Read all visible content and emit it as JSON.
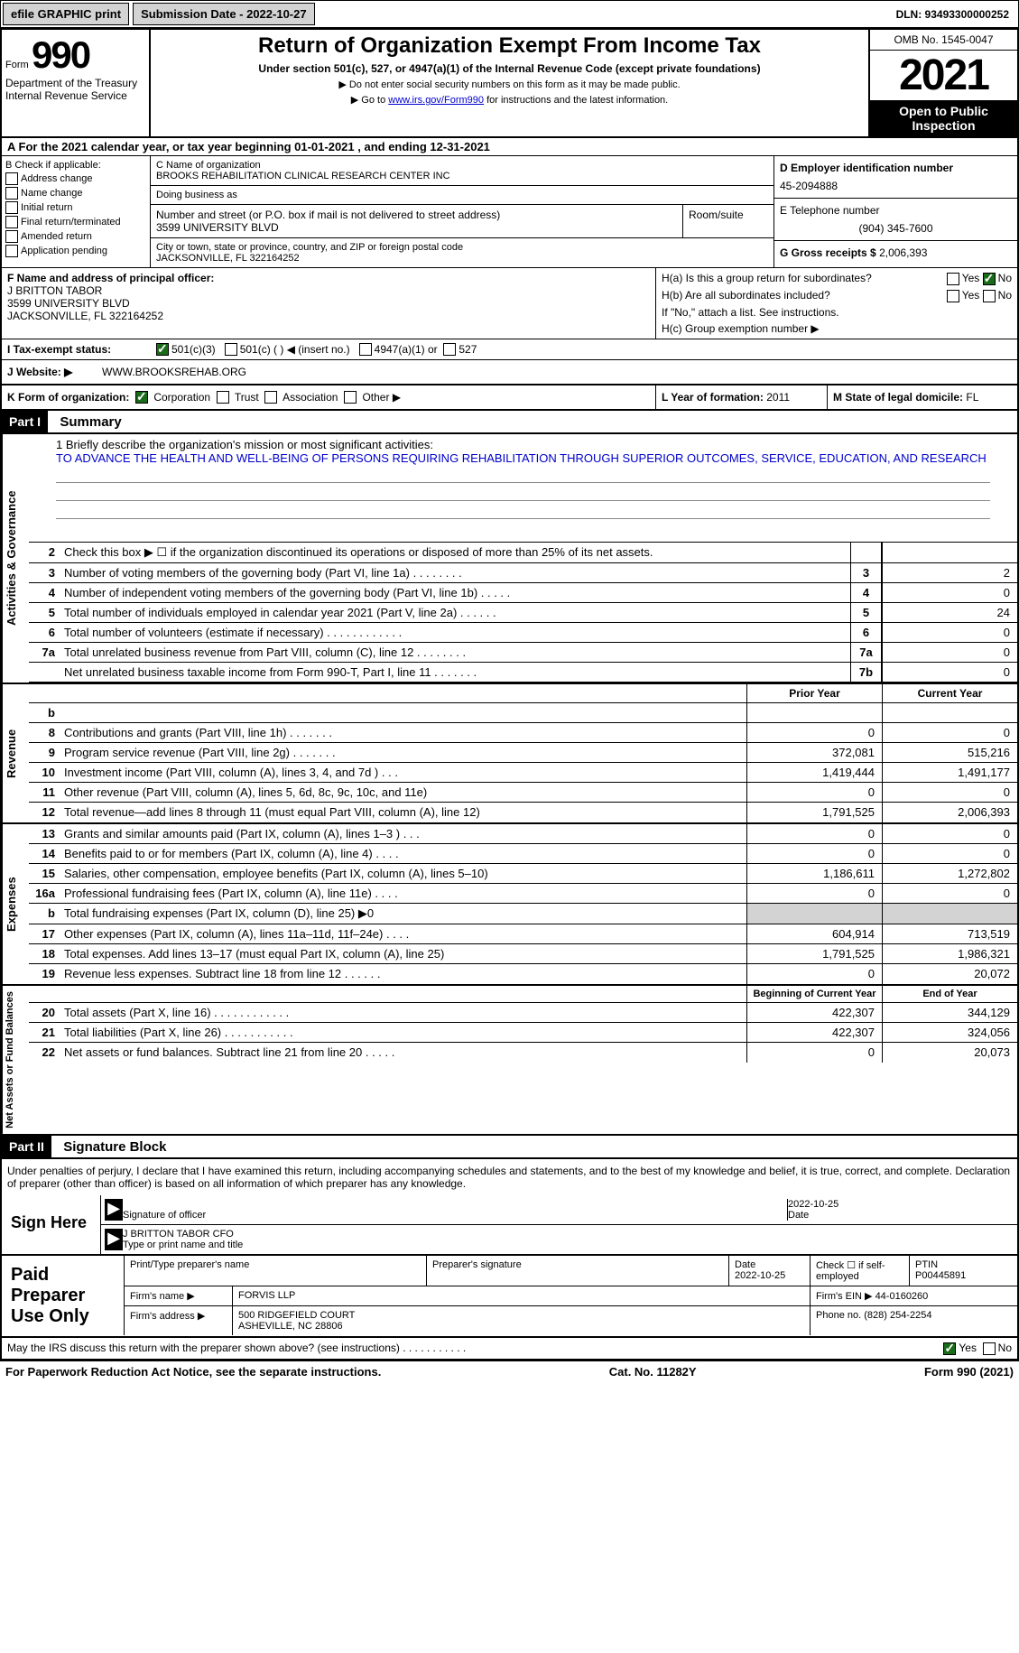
{
  "topbar": {
    "efile": "efile GRAPHIC print",
    "submission": "Submission Date - 2022-10-27",
    "dln": "DLN: 93493300000252"
  },
  "header": {
    "form_word": "Form",
    "form_num": "990",
    "dept": "Department of the Treasury Internal Revenue Service",
    "title": "Return of Organization Exempt From Income Tax",
    "subtitle": "Under section 501(c), 527, or 4947(a)(1) of the Internal Revenue Code (except private foundations)",
    "note1": "▶ Do not enter social security numbers on this form as it may be made public.",
    "note2_pre": "▶ Go to ",
    "note2_link": "www.irs.gov/Form990",
    "note2_post": " for instructions and the latest information.",
    "omb": "OMB No. 1545-0047",
    "year": "2021",
    "open": "Open to Public Inspection"
  },
  "rowA": "A For the 2021 calendar year, or tax year beginning 01-01-2021    , and ending 12-31-2021",
  "boxB": {
    "title": "B Check if applicable:",
    "items": [
      "Address change",
      "Name change",
      "Initial return",
      "Final return/terminated",
      "Amended return",
      "Application pending"
    ]
  },
  "boxC": {
    "name_label": "C Name of organization",
    "name": "BROOKS REHABILITATION CLINICAL RESEARCH CENTER INC",
    "dba_label": "Doing business as",
    "addr_label": "Number and street (or P.O. box if mail is not delivered to street address)",
    "room_label": "Room/suite",
    "addr": "3599 UNIVERSITY BLVD",
    "city_label": "City or town, state or province, country, and ZIP or foreign postal code",
    "city": "JACKSONVILLE, FL  322164252"
  },
  "boxD": {
    "label": "D Employer identification number",
    "value": "45-2094888"
  },
  "boxE": {
    "label": "E Telephone number",
    "value": "(904) 345-7600"
  },
  "boxG": {
    "label": "G Gross receipts $ ",
    "value": "2,006,393"
  },
  "boxF": {
    "label": "F Name and address of principal officer:",
    "name": "J BRITTON TABOR",
    "addr1": "3599 UNIVERSITY BLVD",
    "addr2": "JACKSONVILLE, FL  322164252"
  },
  "boxH": {
    "a": "H(a) Is this a group return for subordinates?",
    "b": "H(b) Are all subordinates included?",
    "note": "If \"No,\" attach a list. See instructions.",
    "c": "H(c) Group exemption number ▶",
    "yes": "Yes",
    "no": "No"
  },
  "rowI": {
    "label": "I Tax-exempt status:",
    "o1": "501(c)(3)",
    "o2": "501(c) (  ) ◀ (insert no.)",
    "o3": "4947(a)(1) or",
    "o4": "527"
  },
  "rowJ": {
    "label": "J Website: ▶",
    "value": "WWW.BROOKSREHAB.ORG"
  },
  "rowK": {
    "label": "K Form of organization:",
    "o1": "Corporation",
    "o2": "Trust",
    "o3": "Association",
    "o4": "Other ▶"
  },
  "rowL": {
    "label": "L Year of formation: ",
    "value": "2011"
  },
  "rowM": {
    "label": "M State of legal domicile: ",
    "value": "FL"
  },
  "part1": {
    "tag": "Part I",
    "title": "Summary"
  },
  "mission": {
    "line1_label": "1  Briefly describe the organization's mission or most significant activities:",
    "text": "TO ADVANCE THE HEALTH AND WELL-BEING OF PERSONS REQUIRING REHABILITATION THROUGH SUPERIOR OUTCOMES, SERVICE, EDUCATION, AND RESEARCH"
  },
  "lines_gov": [
    {
      "n": "2",
      "t": "Check this box ▶ ☐ if the organization discontinued its operations or disposed of more than 25% of its net assets.",
      "box": "",
      "v": ""
    },
    {
      "n": "3",
      "t": "Number of voting members of the governing body (Part VI, line 1a)  .   .   .   .   .   .   .   .",
      "box": "3",
      "v": "2"
    },
    {
      "n": "4",
      "t": "Number of independent voting members of the governing body (Part VI, line 1b)  .   .   .   .   .",
      "box": "4",
      "v": "0"
    },
    {
      "n": "5",
      "t": "Total number of individuals employed in calendar year 2021 (Part V, line 2a)  .   .   .   .   .   .",
      "box": "5",
      "v": "24"
    },
    {
      "n": "6",
      "t": "Total number of volunteers (estimate if necessary)   .   .   .   .   .   .   .   .   .   .   .   .",
      "box": "6",
      "v": "0"
    },
    {
      "n": "7a",
      "t": "Total unrelated business revenue from Part VIII, column (C), line 12   .   .   .   .   .   .   .   .",
      "box": "7a",
      "v": "0"
    },
    {
      "n": "",
      "t": "Net unrelated business taxable income from Form 990-T, Part I, line 11  .   .   .   .   .   .   .",
      "box": "7b",
      "v": "0"
    }
  ],
  "col_hdrs": {
    "prior": "Prior Year",
    "current": "Current Year",
    "begin": "Beginning of Current Year",
    "end": "End of Year"
  },
  "lines_rev": [
    {
      "n": "b",
      "t": "",
      "p": "",
      "c": ""
    },
    {
      "n": "8",
      "t": "Contributions and grants (Part VIII, line 1h)   .   .   .   .   .   .   .",
      "p": "0",
      "c": "0"
    },
    {
      "n": "9",
      "t": "Program service revenue (Part VIII, line 2g)   .   .   .   .   .   .   .",
      "p": "372,081",
      "c": "515,216"
    },
    {
      "n": "10",
      "t": "Investment income (Part VIII, column (A), lines 3, 4, and 7d )   .   .   .",
      "p": "1,419,444",
      "c": "1,491,177"
    },
    {
      "n": "11",
      "t": "Other revenue (Part VIII, column (A), lines 5, 6d, 8c, 9c, 10c, and 11e)",
      "p": "0",
      "c": "0"
    },
    {
      "n": "12",
      "t": "Total revenue—add lines 8 through 11 (must equal Part VIII, column (A), line 12)",
      "p": "1,791,525",
      "c": "2,006,393"
    }
  ],
  "lines_exp": [
    {
      "n": "13",
      "t": "Grants and similar amounts paid (Part IX, column (A), lines 1–3 )   .   .   .",
      "p": "0",
      "c": "0"
    },
    {
      "n": "14",
      "t": "Benefits paid to or for members (Part IX, column (A), line 4)   .   .   .   .",
      "p": "0",
      "c": "0"
    },
    {
      "n": "15",
      "t": "Salaries, other compensation, employee benefits (Part IX, column (A), lines 5–10)",
      "p": "1,186,611",
      "c": "1,272,802"
    },
    {
      "n": "16a",
      "t": "Professional fundraising fees (Part IX, column (A), line 11e)   .   .   .   .",
      "p": "0",
      "c": "0"
    },
    {
      "n": "b",
      "t": "Total fundraising expenses (Part IX, column (D), line 25) ▶0",
      "p": "",
      "c": "",
      "shade": true
    },
    {
      "n": "17",
      "t": "Other expenses (Part IX, column (A), lines 11a–11d, 11f–24e)   .   .   .   .",
      "p": "604,914",
      "c": "713,519"
    },
    {
      "n": "18",
      "t": "Total expenses. Add lines 13–17 (must equal Part IX, column (A), line 25)",
      "p": "1,791,525",
      "c": "1,986,321"
    },
    {
      "n": "19",
      "t": "Revenue less expenses. Subtract line 18 from line 12  .   .   .   .   .   .",
      "p": "0",
      "c": "20,072"
    }
  ],
  "lines_net": [
    {
      "n": "20",
      "t": "Total assets (Part X, line 16)  .   .   .   .   .   .   .   .   .   .   .   .",
      "p": "422,307",
      "c": "344,129"
    },
    {
      "n": "21",
      "t": "Total liabilities (Part X, line 26)  .   .   .   .   .   .   .   .   .   .   .",
      "p": "422,307",
      "c": "324,056"
    },
    {
      "n": "22",
      "t": "Net assets or fund balances. Subtract line 21 from line 20  .   .   .   .   .",
      "p": "0",
      "c": "20,073"
    }
  ],
  "part2": {
    "tag": "Part II",
    "title": "Signature Block"
  },
  "sig": {
    "declaration": "Under penalties of perjury, I declare that I have examined this return, including accompanying schedules and statements, and to the best of my knowledge and belief, it is true, correct, and complete. Declaration of preparer (other than officer) is based on all information of which preparer has any knowledge.",
    "sign_here": "Sign Here",
    "sig_officer": "Signature of officer",
    "date": "Date",
    "sig_date": "2022-10-25",
    "name_title": "J BRITTON TABOR CFO",
    "type_label": "Type or print name and title"
  },
  "paid": {
    "title": "Paid Preparer Use Only",
    "print_label": "Print/Type preparer's name",
    "sig_label": "Preparer's signature",
    "date_label": "Date",
    "date_val": "2022-10-25",
    "check_label": "Check ☐ if self-employed",
    "ptin_label": "PTIN",
    "ptin_val": "P00445891",
    "firm_name_label": "Firm's name   ▶",
    "firm_name": "FORVIS LLP",
    "firm_ein_label": "Firm's EIN ▶",
    "firm_ein": "44-0160260",
    "firm_addr_label": "Firm's address ▶",
    "firm_addr1": "500 RIDGEFIELD COURT",
    "firm_addr2": "ASHEVILLE, NC  28806",
    "phone_label": "Phone no. ",
    "phone": "(828) 254-2254"
  },
  "discuss": {
    "text": "May the IRS discuss this return with the preparer shown above? (see instructions)   .   .   .   .   .   .   .   .   .   .   .",
    "yes": "Yes",
    "no": "No"
  },
  "footer": {
    "left": "For Paperwork Reduction Act Notice, see the separate instructions.",
    "mid": "Cat. No. 11282Y",
    "right": "Form 990 (2021)"
  },
  "side_labels": {
    "gov": "Activities & Governance",
    "rev": "Revenue",
    "exp": "Expenses",
    "net": "Net Assets or Fund Balances"
  }
}
